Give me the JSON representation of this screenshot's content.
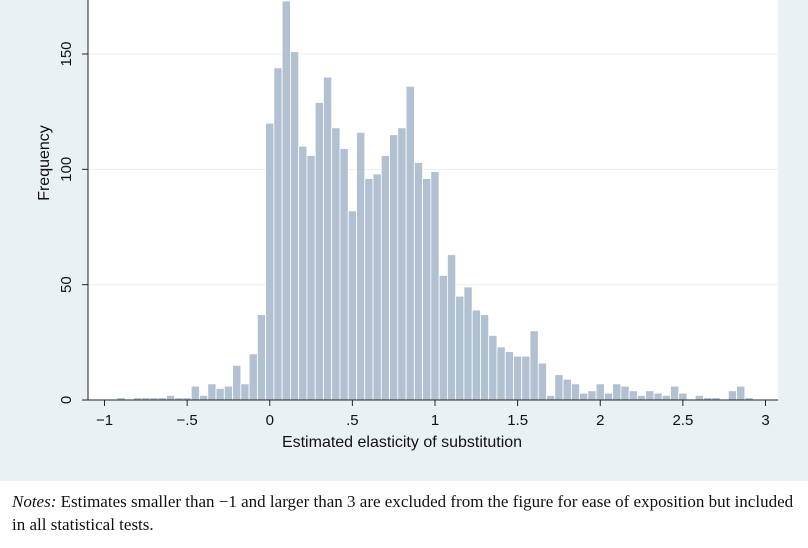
{
  "chart_data": {
    "type": "bar",
    "xlabel": "Estimated elasticity of substitution",
    "ylabel": "Frequency",
    "xlim": [
      -1.1,
      3.08
    ],
    "ylim": [
      0,
      175
    ],
    "bin_width": 0.05,
    "x_ticks": [
      -1,
      -0.5,
      0,
      0.5,
      1,
      1.5,
      2,
      2.5,
      3
    ],
    "x_tick_labels": [
      "−1",
      "−.5",
      "0",
      ".5",
      "1",
      "1.5",
      "2",
      "2.5",
      "3"
    ],
    "y_ticks": [
      0,
      50,
      100,
      150
    ],
    "y_tick_labels": [
      "0",
      "50",
      "100",
      "150"
    ],
    "grid": true,
    "x": [
      -0.9,
      -0.85,
      -0.8,
      -0.75,
      -0.7,
      -0.65,
      -0.6,
      -0.55,
      -0.5,
      -0.45,
      -0.4,
      -0.35,
      -0.3,
      -0.25,
      -0.2,
      -0.15,
      -0.1,
      -0.05,
      0,
      0.05,
      0.1,
      0.15,
      0.2,
      0.25,
      0.3,
      0.35,
      0.4,
      0.45,
      0.5,
      0.55,
      0.6,
      0.65,
      0.7,
      0.75,
      0.8,
      0.85,
      0.9,
      0.95,
      1,
      1.05,
      1.1,
      1.15,
      1.2,
      1.25,
      1.3,
      1.35,
      1.4,
      1.45,
      1.5,
      1.55,
      1.6,
      1.65,
      1.7,
      1.75,
      1.8,
      1.85,
      1.9,
      1.95,
      2,
      2.05,
      2.1,
      2.15,
      2.2,
      2.25,
      2.3,
      2.35,
      2.4,
      2.45,
      2.5,
      2.55,
      2.6,
      2.65,
      2.7,
      2.75,
      2.8,
      2.85,
      2.9,
      2.95
    ],
    "values": [
      1,
      0,
      1,
      1,
      1,
      1,
      2,
      1,
      1,
      6,
      2,
      7,
      5,
      6,
      15,
      7,
      20,
      37,
      120,
      144,
      173,
      151,
      110,
      106,
      129,
      140,
      118,
      109,
      82,
      116,
      96,
      98,
      106,
      115,
      118,
      136,
      103,
      96,
      99,
      54,
      63,
      45,
      49,
      39,
      37,
      28,
      23,
      21,
      19,
      19,
      30,
      16,
      2,
      11,
      9,
      7,
      3,
      4,
      7,
      3,
      7,
      6,
      4,
      2,
      4,
      3,
      2,
      6,
      3,
      0,
      2,
      1,
      1,
      0,
      4,
      6,
      1,
      0
    ],
    "bar_color": "#b1c1d1",
    "bar_edge_color": "#ffffff"
  },
  "notes": {
    "label": "Notes:",
    "text": " Estimates smaller than −1 and larger than 3 are excluded from the figure for ease of exposition but included in all statistical tests."
  }
}
